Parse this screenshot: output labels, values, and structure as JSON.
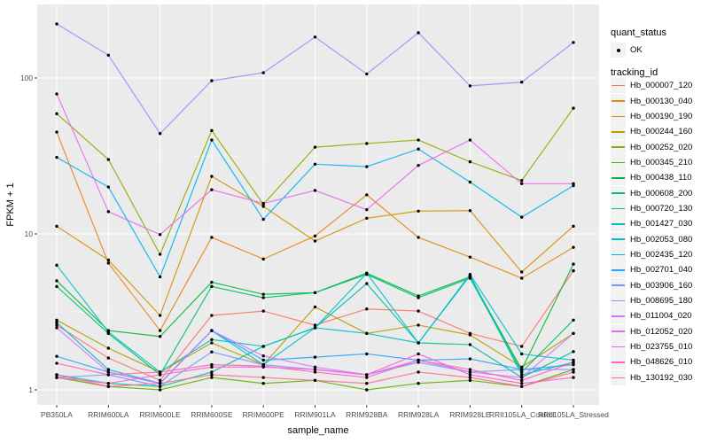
{
  "chart_data": {
    "type": "line",
    "title": "",
    "xlabel": "sample_name",
    "ylabel": "FPKM + 1",
    "y_scale": "log10",
    "ylim": [
      1,
      300
    ],
    "grid": true,
    "legend_position": "right",
    "panel_background": "#EBEBEB",
    "gridline_color": "#FFFFFF",
    "point_color": "#000000",
    "y_ticks": [
      1,
      10,
      100
    ],
    "y_tick_labels": [
      "1",
      "10",
      "100"
    ],
    "y_minor": [
      3.162,
      31.62
    ],
    "point_legend": {
      "title": "quant_status",
      "items": [
        {
          "label": "OK"
        }
      ]
    },
    "series_legend_title": "tracking_id",
    "categories": [
      "PB350LA",
      "RRIM600LA",
      "RRIM600LE",
      "RRIM600SE",
      "RRIM600PE",
      "RRIM901LA",
      "RRIM928BA",
      "RRIM928LA",
      "RRIM928LE",
      "RRII105LA_Control",
      "RRII105LA_Stressed"
    ],
    "series": [
      {
        "name": "Hb_000007_120",
        "color": "#F8766D",
        "values": [
          2.6,
          1.6,
          1.15,
          3.0,
          3.2,
          2.6,
          3.3,
          3.2,
          2.3,
          1.9,
          5.8
        ]
      },
      {
        "name": "Hb_000130_040",
        "color": "#E68613",
        "values": [
          45,
          6.5,
          2.4,
          9.5,
          6.9,
          9.7,
          17.8,
          9.5,
          7.1,
          5.2,
          8.2
        ]
      },
      {
        "name": "Hb_000190_190",
        "color": "#D59100",
        "values": [
          11.2,
          6.8,
          3.0,
          23.4,
          15.0,
          9.0,
          12.6,
          14.0,
          14.1,
          5.7,
          11.2
        ]
      },
      {
        "name": "Hb_000244_160",
        "color": "#B79F00",
        "values": [
          2.8,
          1.85,
          1.3,
          2.0,
          1.45,
          3.4,
          2.3,
          2.6,
          2.25,
          1.4,
          2.3
        ]
      },
      {
        "name": "Hb_000252_020",
        "color": "#93AA00",
        "values": [
          59,
          30,
          7.4,
          46,
          15.5,
          36,
          38,
          40,
          29,
          22,
          64
        ]
      },
      {
        "name": "Hb_000345_210",
        "color": "#5EB300",
        "values": [
          1.2,
          1.05,
          1.0,
          1.2,
          1.1,
          1.15,
          1.0,
          1.1,
          1.15,
          1.05,
          1.35
        ]
      },
      {
        "name": "Hb_000438_110",
        "color": "#00BA38",
        "values": [
          5.0,
          2.4,
          2.2,
          4.9,
          4.1,
          4.2,
          5.6,
          4.0,
          5.3,
          1.35,
          6.4
        ]
      },
      {
        "name": "Hb_000608_200",
        "color": "#00BF74",
        "values": [
          4.6,
          2.3,
          1.25,
          4.6,
          3.9,
          4.2,
          5.5,
          3.9,
          5.2,
          1.3,
          2.8
        ]
      },
      {
        "name": "Hb_000720_130",
        "color": "#00C19F",
        "values": [
          1.25,
          1.1,
          1.05,
          1.3,
          1.9,
          2.5,
          4.8,
          2.0,
          1.95,
          1.2,
          1.76
        ]
      },
      {
        "name": "Hb_001427_030",
        "color": "#00BFC4",
        "values": [
          6.3,
          2.35,
          1.3,
          2.1,
          1.9,
          2.5,
          2.3,
          2.0,
          5.4,
          1.25,
          1.5
        ]
      },
      {
        "name": "Hb_002053_080",
        "color": "#00BDD2",
        "values": [
          2.7,
          1.35,
          1.1,
          2.4,
          1.45,
          2.5,
          5.6,
          2.0,
          5.5,
          1.7,
          1.55
        ]
      },
      {
        "name": "Hb_002435_120",
        "color": "#00B3F2",
        "values": [
          31,
          20,
          5.3,
          40,
          12.4,
          28,
          27,
          35,
          21.5,
          12.8,
          20.4
        ]
      },
      {
        "name": "Hb_002701_040",
        "color": "#29A3FF",
        "values": [
          1.64,
          1.3,
          1.1,
          2.4,
          1.55,
          1.62,
          1.7,
          1.55,
          1.58,
          1.35,
          1.45
        ]
      },
      {
        "name": "Hb_003906_160",
        "color": "#7C96FF",
        "values": [
          1.2,
          1.25,
          1.05,
          1.75,
          1.45,
          1.35,
          1.25,
          1.5,
          1.3,
          1.35,
          1.35
        ]
      },
      {
        "name": "Hb_008695_180",
        "color": "#A58AFF",
        "values": [
          222,
          140,
          44,
          96,
          108,
          183,
          106,
          195,
          89,
          94,
          169
        ]
      },
      {
        "name": "Hb_011004_020",
        "color": "#CF78FF",
        "values": [
          2.5,
          1.3,
          1.1,
          2.4,
          1.65,
          1.4,
          1.25,
          1.55,
          1.3,
          1.2,
          2.3
        ]
      },
      {
        "name": "Hb_012052_020",
        "color": "#EA69F1",
        "values": [
          79,
          13.9,
          9.9,
          19.2,
          15.7,
          19,
          14.3,
          27.5,
          40,
          21,
          21
        ]
      },
      {
        "name": "Hb_023755_010",
        "color": "#FB61D7",
        "values": [
          1.2,
          1.1,
          1.25,
          1.4,
          1.4,
          1.35,
          1.25,
          1.7,
          1.25,
          1.1,
          1.2
        ]
      },
      {
        "name": "Hb_048626_010",
        "color": "#FF63B6",
        "values": [
          1.48,
          1.25,
          1.3,
          1.45,
          1.42,
          1.3,
          1.2,
          1.55,
          1.35,
          1.15,
          1.5
        ]
      },
      {
        "name": "Hb_130192_030",
        "color": "#FF6B94",
        "values": [
          1.25,
          1.05,
          1.1,
          1.25,
          1.2,
          1.15,
          1.1,
          1.3,
          1.2,
          1.05,
          1.3
        ]
      }
    ]
  }
}
